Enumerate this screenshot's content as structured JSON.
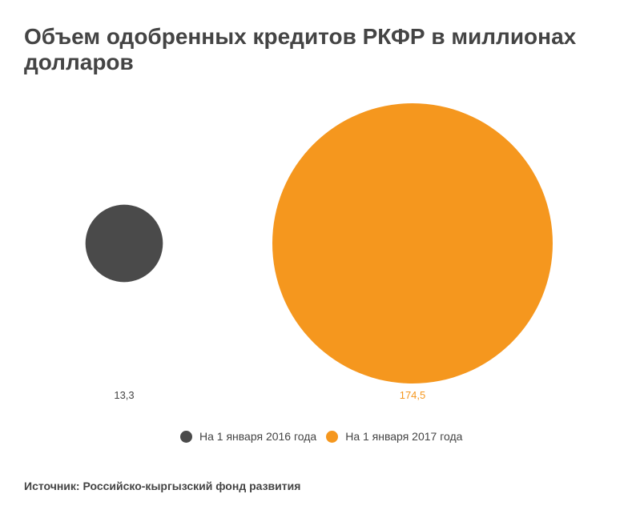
{
  "chart_data": {
    "type": "bubble",
    "title": "Объем одобренных кредитов РКФР в миллионах долларов",
    "series": [
      {
        "name": "На 1 января 2016 года",
        "value": 13.3,
        "label": "13,3",
        "color": "#4a4a4a"
      },
      {
        "name": "На 1 января 2017 года",
        "value": 174.5,
        "label": "174,5",
        "color": "#f5971e"
      }
    ],
    "legend_position": "bottom",
    "source": "Источник: Российско-кыргызский фонд развития"
  }
}
